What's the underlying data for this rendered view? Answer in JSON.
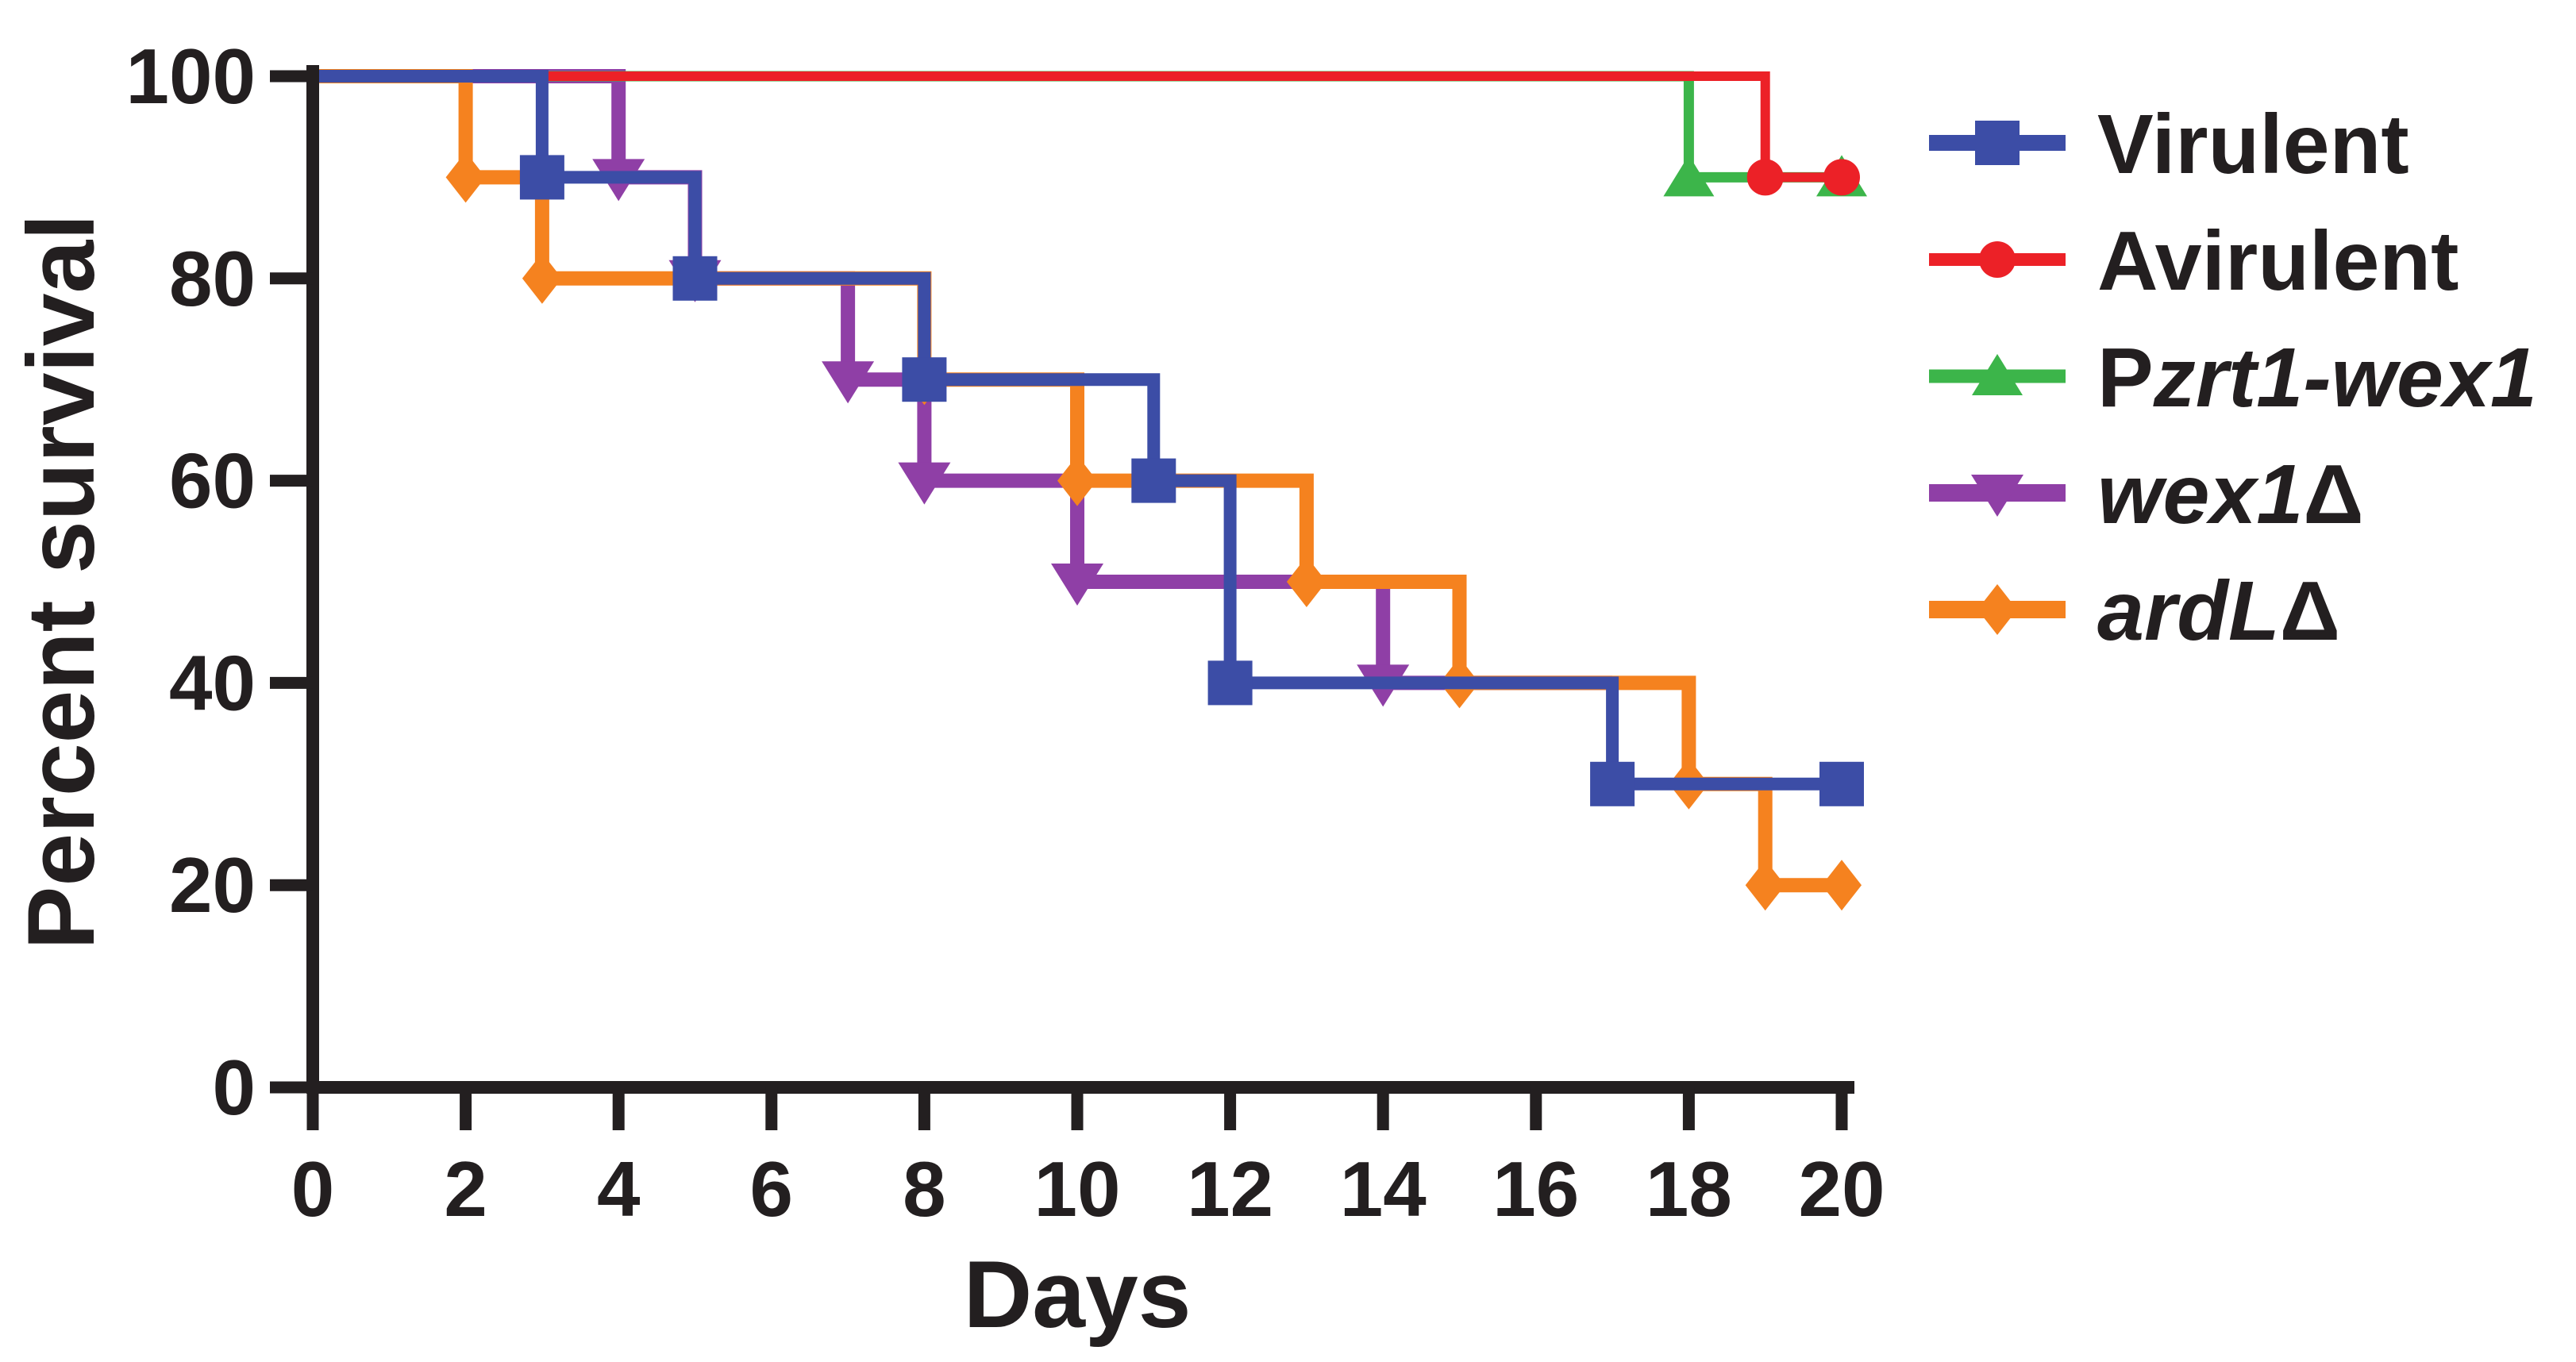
{
  "chart_data": {
    "type": "line",
    "subtype": "kaplan-meier-step-survival",
    "title": "",
    "xlabel": "Days",
    "ylabel": "Percent survival",
    "xlim": [
      0,
      20
    ],
    "ylim": [
      0,
      100
    ],
    "xticks": [
      0,
      2,
      4,
      6,
      8,
      10,
      12,
      14,
      16,
      18,
      20
    ],
    "yticks": [
      0,
      20,
      40,
      60,
      80,
      100
    ],
    "grid": false,
    "legend_position": "right",
    "axis_color": "#231F20",
    "background_color": "#FFFFFF",
    "draw_order": [
      "wex1-delta",
      "ardL-delta",
      "Pzrt1-wex1",
      "Avirulent",
      "Virulent"
    ],
    "series": [
      {
        "id": "Virulent",
        "name": "Virulent",
        "label_parts": [
          {
            "text": "Virulent",
            "italic": false
          }
        ],
        "color": "#3C4DA6",
        "marker": "square",
        "line_width": 16,
        "steps": [
          [
            0,
            100
          ],
          [
            3,
            100
          ],
          [
            3,
            90
          ],
          [
            5,
            90
          ],
          [
            5,
            80
          ],
          [
            8,
            80
          ],
          [
            8,
            70
          ],
          [
            11,
            70
          ],
          [
            11,
            60
          ],
          [
            12,
            60
          ],
          [
            12,
            40
          ],
          [
            17,
            40
          ],
          [
            17,
            30
          ],
          [
            20,
            30
          ]
        ],
        "marker_points": [
          [
            3,
            90
          ],
          [
            5,
            80
          ],
          [
            8,
            70
          ],
          [
            11,
            60
          ],
          [
            12,
            40
          ],
          [
            17,
            30
          ],
          [
            20,
            30
          ]
        ]
      },
      {
        "id": "Avirulent",
        "name": "Avirulent",
        "label_parts": [
          {
            "text": "Avirulent",
            "italic": false
          }
        ],
        "color": "#EC2127",
        "marker": "circle",
        "line_width": 12,
        "steps": [
          [
            0,
            100
          ],
          [
            19,
            100
          ],
          [
            19,
            90
          ],
          [
            20,
            90
          ]
        ],
        "marker_points": [
          [
            19,
            90
          ],
          [
            20,
            90
          ]
        ]
      },
      {
        "id": "Pzrt1-wex1",
        "name": "Pzrt1-wex1",
        "label_parts": [
          {
            "text": "P",
            "italic": false
          },
          {
            "text": "zrt1-wex1",
            "italic": true
          }
        ],
        "color": "#3CB54A",
        "marker": "triangle-up",
        "line_width": 13,
        "steps": [
          [
            0,
            100
          ],
          [
            18,
            100
          ],
          [
            18,
            90
          ],
          [
            20,
            90
          ]
        ],
        "marker_points": [
          [
            18,
            90
          ],
          [
            20,
            90
          ]
        ]
      },
      {
        "id": "wex1-delta",
        "name": "wex1Δ",
        "label_parts": [
          {
            "text": "wex1",
            "italic": true
          },
          {
            "text": "Δ",
            "italic": false
          }
        ],
        "color": "#8F3FA6",
        "marker": "triangle-down",
        "line_width": 18,
        "steps": [
          [
            0,
            100
          ],
          [
            4,
            100
          ],
          [
            4,
            90
          ],
          [
            5,
            90
          ],
          [
            5,
            80
          ],
          [
            7,
            80
          ],
          [
            7,
            70
          ],
          [
            8,
            70
          ],
          [
            8,
            60
          ],
          [
            10,
            60
          ],
          [
            10,
            50
          ],
          [
            14,
            50
          ],
          [
            14,
            40
          ],
          [
            17,
            40
          ]
        ],
        "marker_points": [
          [
            4,
            90
          ],
          [
            5,
            80
          ],
          [
            7,
            70
          ],
          [
            8,
            60
          ],
          [
            10,
            50
          ],
          [
            14,
            40
          ]
        ]
      },
      {
        "id": "ardL-delta",
        "name": "ardLΔ",
        "label_parts": [
          {
            "text": "ardL",
            "italic": true
          },
          {
            "text": "Δ",
            "italic": false
          }
        ],
        "color": "#F5821F",
        "marker": "diamond",
        "line_width": 18,
        "steps": [
          [
            0,
            100
          ],
          [
            2,
            100
          ],
          [
            2,
            90
          ],
          [
            3,
            90
          ],
          [
            3,
            80
          ],
          [
            8,
            80
          ],
          [
            8,
            70
          ],
          [
            10,
            70
          ],
          [
            10,
            60
          ],
          [
            13,
            60
          ],
          [
            13,
            50
          ],
          [
            15,
            50
          ],
          [
            15,
            40
          ],
          [
            18,
            40
          ],
          [
            18,
            30
          ],
          [
            19,
            30
          ],
          [
            19,
            20
          ],
          [
            20,
            20
          ]
        ],
        "marker_points": [
          [
            2,
            90
          ],
          [
            3,
            80
          ],
          [
            8,
            70
          ],
          [
            10,
            60
          ],
          [
            13,
            50
          ],
          [
            15,
            40
          ],
          [
            18,
            30
          ],
          [
            19,
            20
          ],
          [
            20,
            20
          ]
        ]
      }
    ]
  }
}
